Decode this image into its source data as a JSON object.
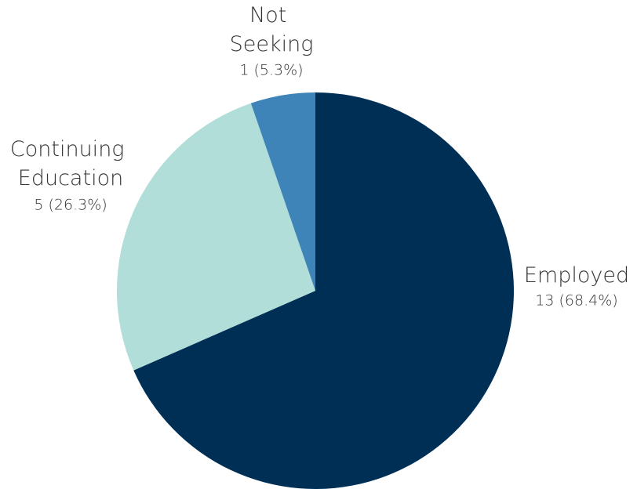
{
  "chart_data": {
    "type": "pie",
    "categories": [
      "Employed",
      "Continuing Education",
      "Not Seeking"
    ],
    "values": [
      13,
      5,
      1
    ],
    "value_labels": [
      "13 (68.4%)",
      "5 (26.3%)",
      "1 (5.3%)"
    ],
    "colors": [
      "#002f56",
      "#b1ded8",
      "#3e84b9"
    ]
  }
}
